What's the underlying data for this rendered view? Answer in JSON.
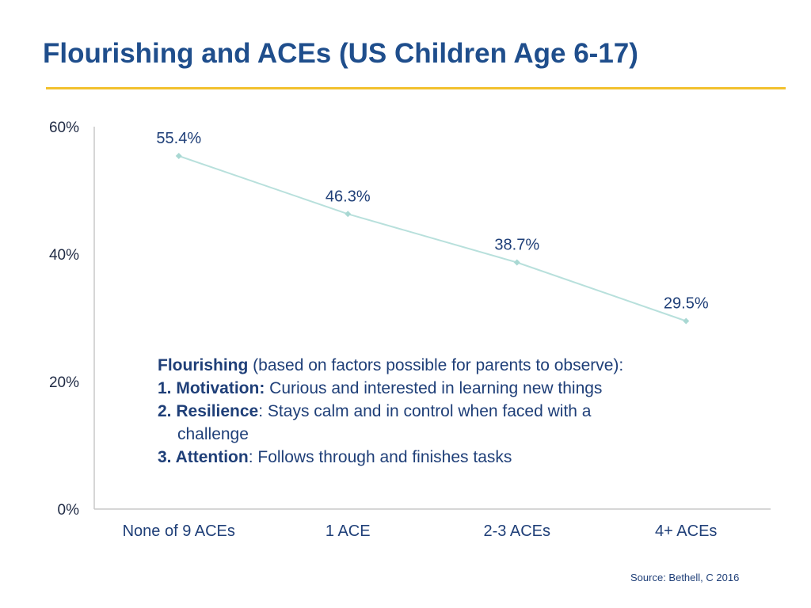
{
  "title": "Flourishing and ACEs (US Children Age 6-17)",
  "chart_data": {
    "type": "line",
    "title": "",
    "xlabel": "",
    "ylabel": "",
    "categories": [
      "None of 9 ACEs",
      "1 ACE",
      "2-3 ACEs",
      "4+ ACEs"
    ],
    "series": [
      {
        "values": [
          55.4,
          46.3,
          38.7,
          29.5
        ]
      }
    ],
    "data_labels": [
      "55.4%",
      "46.3%",
      "38.7%",
      "29.5%"
    ],
    "ylim": [
      0,
      60
    ],
    "yticks": [
      0,
      20,
      40,
      60
    ],
    "ytick_labels": [
      "0%",
      "20%",
      "40%",
      "60%"
    ],
    "grid": false,
    "legend": "none",
    "line_color": "#b8e0dc",
    "marker_color": "#a9d8d3"
  },
  "note": {
    "heading_bold": "Flourishing",
    "heading_rest": " (based on factors possible for parents to observe):",
    "items": [
      {
        "label": "1. Motivation:",
        "text": " Curious and interested in learning new things",
        "cont": ""
      },
      {
        "label": "2. Resilience",
        "text": ": Stays calm and in control when faced with a",
        "cont": "challenge"
      },
      {
        "label": "3. Attention",
        "text": ": Follows through and finishes tasks",
        "cont": ""
      }
    ]
  },
  "source": "Source: Bethell, C  2016",
  "colors": {
    "title": "#1f4e8c",
    "rule": "#f2c12e",
    "text": "#1f3f78"
  }
}
